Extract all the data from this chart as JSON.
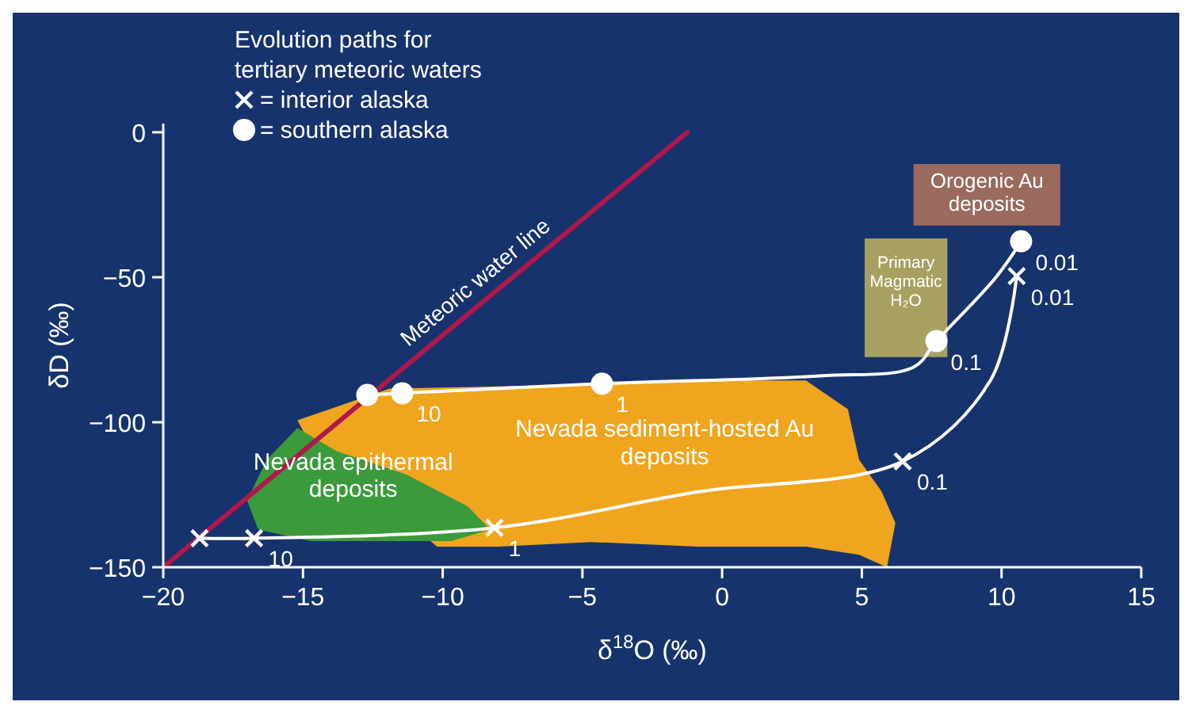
{
  "chart_data": {
    "type": "line",
    "xlabel": "δ$^{18}$O (‰)",
    "ylabel": "δD (‰)",
    "legend_title": "Evolution paths for tertiary meteoric waters",
    "legend": "top left",
    "grid": false,
    "xlim": [
      -20,
      15
    ],
    "ylim": [
      -150,
      3
    ],
    "xticks": [
      -20,
      -15,
      -10,
      -5,
      0,
      5,
      10,
      15
    ],
    "yticks": [
      -150,
      -100,
      -50,
      0
    ],
    "series": [
      {
        "type": "area",
        "name": "Nevada sediment-hosted Au deposits",
        "color": "#f0a51e",
        "x": [
          -15.2,
          -11.9,
          -6.4,
          -0.87,
          3.0,
          4.5,
          4.9,
          5.7,
          6.2,
          5.9,
          4.9,
          3.0,
          -0.87,
          -4.7,
          -8.0,
          -10.2,
          -14.9
        ],
        "values": [
          -99.3,
          -88.4,
          -87.3,
          -85.6,
          -85.6,
          -95.5,
          -112.9,
          -123.8,
          -134.8,
          -150,
          -145.7,
          -142.9,
          -142.9,
          -141.3,
          -142.9,
          -142.9,
          -104.7
        ]
      },
      {
        "type": "area",
        "name": "Nevada epithermal deposits",
        "color": "#3b9a3b",
        "x": [
          -15.2,
          -13.8,
          -11.3,
          -9.1,
          -8.3,
          -9.7,
          -14.7,
          -16.6,
          -17.0,
          -16.3
        ],
        "values": [
          -102,
          -110,
          -118,
          -129,
          -137,
          -141,
          -141,
          -137,
          -127,
          -113
        ]
      },
      {
        "type": "area",
        "name": "Orogenic Au deposits",
        "color": "#9a6a5c",
        "x": [
          6.85,
          12.1,
          12.1,
          6.85
        ],
        "values": [
          -10.9,
          -10.9,
          -32.2,
          -32.2
        ]
      },
      {
        "type": "area",
        "name": "Primary Magmatic H₂O",
        "color": "#a8a060",
        "x": [
          5.1,
          8.06,
          8.06,
          5.1
        ],
        "values": [
          -36.6,
          -36.6,
          -77.5,
          -77.5
        ]
      },
      {
        "name": "Meteoric water line",
        "color": "#b0184a",
        "marker": "none",
        "x": [
          -20,
          -1.25
        ],
        "values": [
          -150,
          0
        ]
      },
      {
        "color": "#ffffff",
        "marker": "none",
        "x": [
          -12.7,
          -11.45,
          -4.3,
          3.5,
          6.85,
          7.67,
          9.8,
          10.7
        ],
        "values": [
          -90.6,
          -90,
          -86.7,
          -84,
          -81,
          -72,
          -50,
          -37.6
        ]
      },
      {
        "color": "#ffffff",
        "marker": "none",
        "x": [
          -18.7,
          -16.75,
          -8.15,
          -0.87,
          6.46,
          9.6,
          10.54
        ],
        "values": [
          -140,
          -140,
          -136.4,
          -124,
          -113.5,
          -85.6,
          -49.6
        ]
      },
      {
        "type": "scatter",
        "name": "= interior alaska",
        "color": "#ffffff",
        "marker": "cross",
        "x": [
          -18.7,
          -16.75,
          -8.15,
          6.46,
          10.54
        ],
        "values": [
          -140,
          -140,
          -136.4,
          -113.5,
          -49.6
        ]
      },
      {
        "type": "scatter",
        "name": "= southern alaska",
        "color": "#ffffff",
        "marker": "circle",
        "x": [
          -12.7,
          -11.45,
          -4.3,
          7.67,
          10.7
        ],
        "values": [
          -90.6,
          -90,
          -86.7,
          -72,
          -37.6
        ]
      }
    ],
    "annotations": [
      {
        "text": "10",
        "x": -16.75,
        "y": -140
      },
      {
        "text": "1",
        "x": -8.15,
        "y": -136.4
      },
      {
        "text": "0.1",
        "x": 6.46,
        "y": -113.5
      },
      {
        "text": "0.01",
        "x": 10.54,
        "y": -49.6
      },
      {
        "text": "10",
        "x": -11.45,
        "y": -90
      },
      {
        "text": "1",
        "x": -4.3,
        "y": -86.7
      },
      {
        "text": "0.1",
        "x": 7.67,
        "y": -72
      },
      {
        "text": "0.01",
        "x": 10.7,
        "y": -37.6
      }
    ]
  }
}
